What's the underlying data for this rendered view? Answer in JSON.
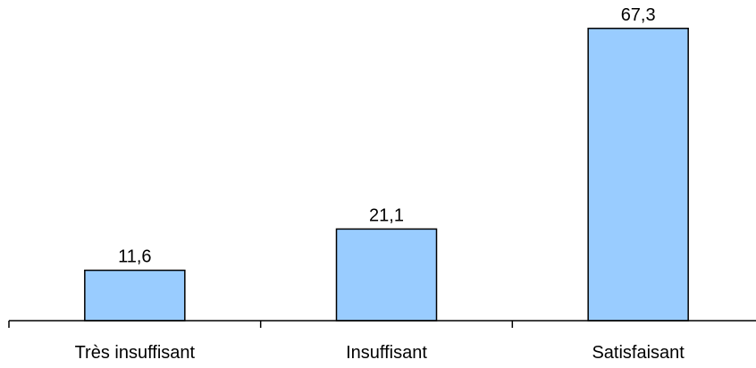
{
  "chart_data": {
    "type": "bar",
    "categories": [
      "Très insuffisant",
      "Insuffisant",
      "Satisfaisant"
    ],
    "values": [
      11.6,
      21.1,
      67.3
    ],
    "value_labels": [
      "11,6",
      "21,1",
      "67,3"
    ],
    "title": "",
    "xlabel": "",
    "ylabel": "",
    "ylim": [
      0,
      72.6
    ],
    "grid": false,
    "legend": "none",
    "colors": {
      "bar_fill": "#99CCFF",
      "bar_stroke": "#000000",
      "axis": "#000000"
    }
  }
}
